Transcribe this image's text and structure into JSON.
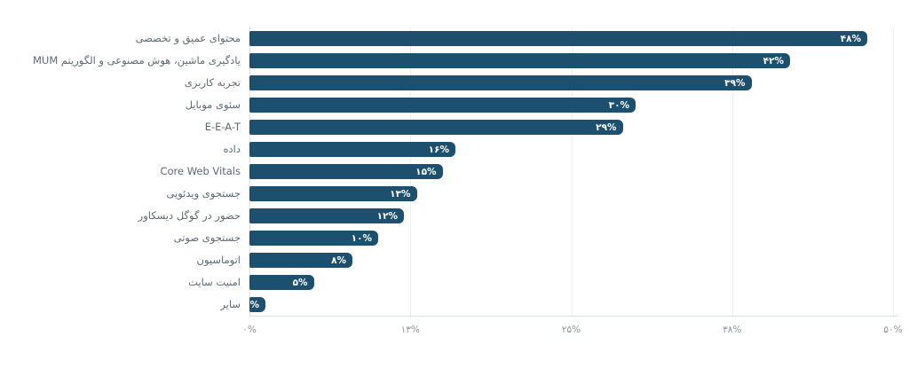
{
  "chart_data": {
    "type": "bar",
    "orientation": "horizontal",
    "title": "",
    "xlabel": "",
    "ylabel": "",
    "xlim": [
      0,
      50
    ],
    "grid": true,
    "legend": false,
    "categories": [
      "محتوای عمیق و تخصصی",
      "یادگیری ماشین، هوش مصنوعی و الگوریتم MUM",
      "تجربه کاربری",
      "سئوی موبایل",
      "E-E-A-T",
      "داده",
      "Core Web Vitals",
      "جستجوی ویدئویی",
      "حضور در گوگل دیسکاور",
      "جستجوی صوتی",
      "اتوماسیون",
      "امنیت سایت",
      "سایر"
    ],
    "values": [
      48,
      42,
      39,
      30,
      29,
      16,
      15,
      13,
      12,
      10,
      8,
      5,
      1
    ],
    "value_labels": [
      "۴۸%",
      "۴۲%",
      "۳۹%",
      "۳۰%",
      "۲۹%",
      "۱۶%",
      "۱۵%",
      "۱۳%",
      "۱۲%",
      "۱۰%",
      "۸%",
      "۵%",
      "۱%"
    ],
    "x_tick_values": [
      0,
      12.5,
      25,
      37.5,
      50
    ],
    "x_tick_labels": [
      "۰%",
      "۱۳%",
      "۲۵%",
      "۳۸%",
      "۵۰%"
    ],
    "colors": {
      "bar": "#1d4f6e",
      "value_label": "#ffffff",
      "category_label": "#5c6a74",
      "tick_label": "#8d959c",
      "axis_line": "#d9dee2",
      "gridline": "#eef1f3",
      "background": "#ffffff"
    }
  }
}
